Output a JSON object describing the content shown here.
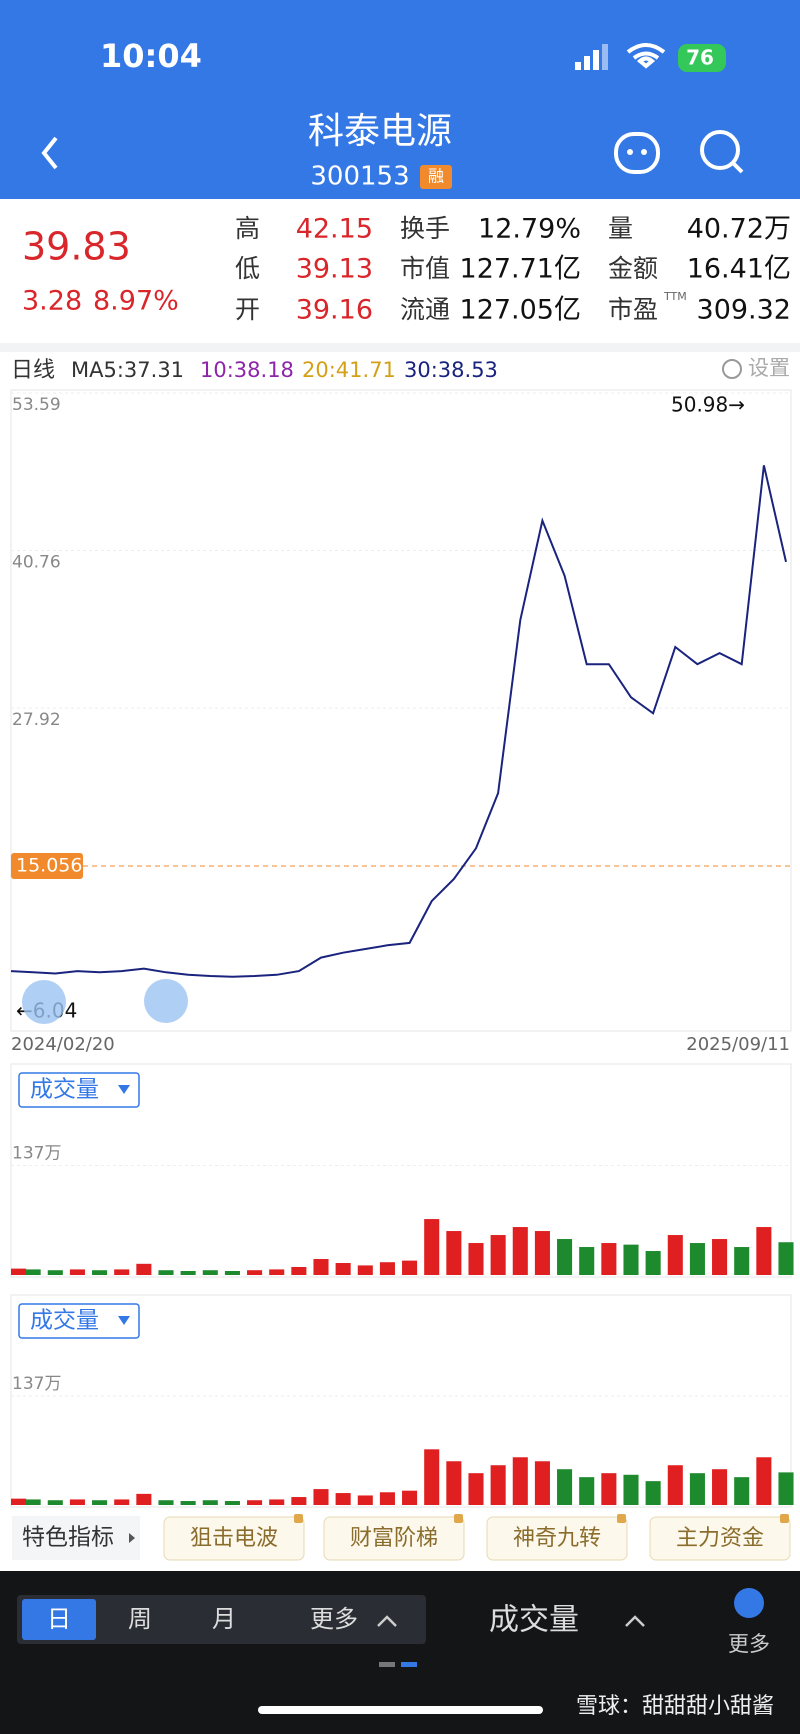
{
  "status_bar": {
    "time": "10:04",
    "battery": "76"
  },
  "header": {
    "title": "科泰电源",
    "code": "300153",
    "badge": "融"
  },
  "quote": {
    "price": "39.83",
    "change": "3.28",
    "change_pct": "8.97%",
    "stats": [
      {
        "label": "高",
        "value": "42.15"
      },
      {
        "label": "换手",
        "value": "12.79%"
      },
      {
        "label": "量",
        "value": "40.72万"
      },
      {
        "label": "低",
        "value": "39.13"
      },
      {
        "label": "市值",
        "value": "127.71亿"
      },
      {
        "label": "金额",
        "value": "16.41亿"
      },
      {
        "label": "开",
        "value": "39.16"
      },
      {
        "label": "流通",
        "value": "127.05亿"
      },
      {
        "label": "市盈",
        "sup": "TTM",
        "value": "309.32"
      }
    ]
  },
  "ma_row": {
    "period": "日线",
    "items": [
      {
        "text": "MA5:37.31",
        "color": "#333333"
      },
      {
        "text": "10:38.18",
        "color": "#8e24aa"
      },
      {
        "text": "20:41.71",
        "color": "#d4a017"
      },
      {
        "text": "30:38.53",
        "color": "#1a237e"
      }
    ],
    "settings": "设置"
  },
  "chart_data": [
    {
      "type": "line",
      "color": "#1a237e",
      "values": [
        6.5,
        6.4,
        6.3,
        6.5,
        6.4,
        6.5,
        6.7,
        6.4,
        6.2,
        6.1,
        6.04,
        6.1,
        6.2,
        6.5,
        7.6,
        8.0,
        8.3,
        8.6,
        8.8,
        12.2,
        14.0,
        16.5,
        21.0,
        35.1,
        43.2,
        38.7,
        31.5,
        31.5,
        28.8,
        27.5,
        32.9,
        31.5,
        32.4,
        31.5,
        47.7,
        39.83
      ],
      "ylim": [
        1.62,
        53.59
      ],
      "yticks": [
        53.59,
        40.76,
        27.92
      ],
      "grid": true,
      "x_start": "2024/02/20",
      "x_end": "2025/09/11",
      "max_label": "50.98→",
      "min_label": "←6.04",
      "ref_line": {
        "value": 15.056,
        "color": "#f08a2c"
      }
    },
    {
      "type": "bar",
      "title": "成交量",
      "values": [
        8,
        7,
        6,
        7,
        6,
        7,
        14,
        6,
        5,
        6,
        5,
        6,
        7,
        10,
        20,
        15,
        12,
        16,
        18,
        70,
        55,
        40,
        50,
        60,
        55,
        45,
        35,
        40,
        38,
        30,
        50,
        40,
        45,
        35,
        60,
        41
      ],
      "ylim": [
        0,
        264
      ],
      "yticks": [
        {
          "value": 137,
          "label": "137万"
        }
      ],
      "up_color": "#e02020",
      "down_color": "#1e8a2e"
    },
    {
      "type": "bar",
      "title": "成交量",
      "values": [
        8,
        7,
        6,
        7,
        6,
        7,
        14,
        6,
        5,
        6,
        5,
        6,
        7,
        10,
        20,
        15,
        12,
        16,
        18,
        70,
        55,
        40,
        50,
        60,
        55,
        45,
        35,
        40,
        38,
        30,
        50,
        40,
        45,
        35,
        60,
        41
      ],
      "ylim": [
        0,
        264
      ],
      "yticks": [
        {
          "value": 137,
          "label": "137万"
        }
      ],
      "up_color": "#e02020",
      "down_color": "#1e8a2e"
    }
  ],
  "indicators": {
    "label": "特色指标",
    "chips": [
      "狙击电波",
      "财富阶梯",
      "神奇九转",
      "主力资金"
    ]
  },
  "bottom_bar": {
    "tabs": [
      "日",
      "周",
      "月",
      "更多"
    ],
    "indicator": "成交量",
    "more": "更多"
  },
  "watermark": "雪球：甜甜甜小甜酱"
}
